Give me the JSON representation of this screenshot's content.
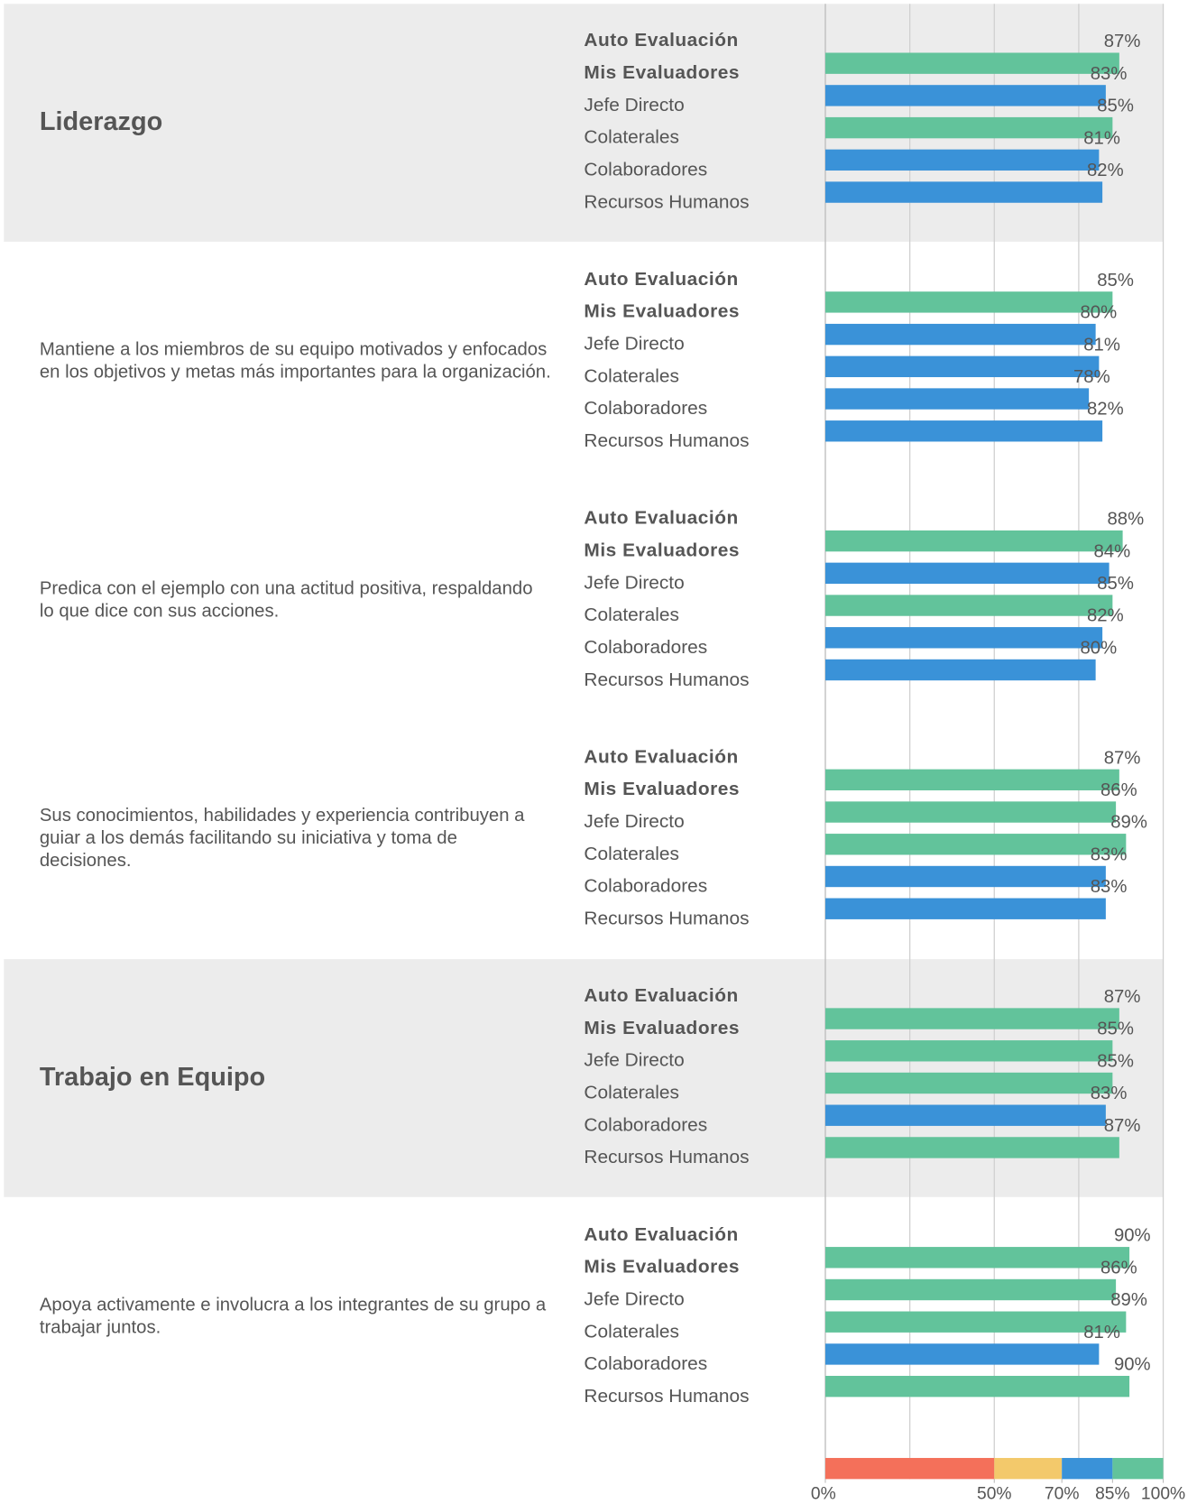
{
  "chart_data": {
    "type": "bar",
    "row_labels": [
      "Auto Evaluación",
      "Mis Evaluadores",
      "Jefe Directo",
      "Colaterales",
      "Colaboradores",
      "Recursos Humanos"
    ],
    "bold_rows": [
      true,
      true,
      false,
      false,
      false,
      false
    ],
    "xlim": [
      0,
      100
    ],
    "grid_ticks": [
      0,
      25,
      50,
      75,
      100
    ],
    "xticks": [
      {
        "value": 0,
        "label": "0%"
      },
      {
        "value": 50,
        "label": "50%"
      },
      {
        "value": 70,
        "label": "70%"
      },
      {
        "value": 85,
        "label": "85%"
      },
      {
        "value": 100,
        "label": "100%"
      }
    ],
    "bands": [
      {
        "from": 0,
        "to": 50,
        "color": "#f4705a"
      },
      {
        "from": 50,
        "to": 70,
        "color": "#f3c96b"
      },
      {
        "from": 70,
        "to": 85,
        "color": "#3a92d8"
      },
      {
        "from": 85,
        "to": 100,
        "color": "#62c39b"
      }
    ],
    "groups": [
      {
        "title": "Liderazgo",
        "heading": true,
        "values": [
          87,
          83,
          85,
          81,
          82
        ],
        "value_labels": [
          "87%",
          "83%",
          "85%",
          "81%",
          "82%"
        ]
      },
      {
        "title": "Mantiene a los miembros de su equipo motivados y enfocados en los objetivos y metas más importantes para la organización.",
        "heading": false,
        "values": [
          85,
          80,
          81,
          78,
          82
        ],
        "value_labels": [
          "85%",
          "80%",
          "81%",
          "78%",
          "82%"
        ]
      },
      {
        "title": "Predica con el ejemplo con una actitud positiva, respaldando lo que dice con sus acciones.",
        "heading": false,
        "values": [
          88,
          84,
          85,
          82,
          80
        ],
        "value_labels": [
          "88%",
          "84%",
          "85%",
          "82%",
          "80%"
        ]
      },
      {
        "title": "Sus conocimientos, habilidades y experiencia contribuyen a guiar a los demás facilitando su iniciativa y toma de decisiones.",
        "heading": false,
        "values": [
          87,
          86,
          89,
          83,
          83
        ],
        "value_labels": [
          "87%",
          "86%",
          "89%",
          "83%",
          "83%"
        ]
      },
      {
        "title": "Trabajo en Equipo",
        "heading": true,
        "values": [
          87,
          85,
          85,
          83,
          87
        ],
        "value_labels": [
          "87%",
          "85%",
          "85%",
          "83%",
          "87%"
        ]
      },
      {
        "title": "Apoya activamente e involucra a los integrantes de su grupo a trabajar juntos.",
        "heading": false,
        "values": [
          90,
          86,
          89,
          81,
          90
        ],
        "value_labels": [
          "90%",
          "86%",
          "89%",
          "81%",
          "90%"
        ]
      }
    ]
  }
}
